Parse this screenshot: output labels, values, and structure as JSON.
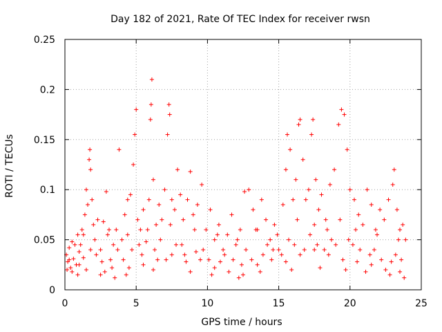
{
  "chart_data": {
    "type": "scatter",
    "title": "Day 182 of 2021, Rate Of TEC Index for receiver rwsn",
    "xlabel": "GPS time / hours",
    "ylabel": "ROTI / TECUs",
    "xlim": [
      0,
      25
    ],
    "ylim": [
      0,
      0.25
    ],
    "x_ticks": [
      {
        "value": 0,
        "label": "0"
      },
      {
        "value": 5,
        "label": "5"
      },
      {
        "value": 10,
        "label": "10"
      },
      {
        "value": 15,
        "label": "15"
      },
      {
        "value": 20,
        "label": "20"
      },
      {
        "value": 25,
        "label": "25"
      }
    ],
    "y_ticks": [
      {
        "value": 0,
        "label": "0"
      },
      {
        "value": 0.05,
        "label": "0.05"
      },
      {
        "value": 0.1,
        "label": "0.1"
      },
      {
        "value": 0.15,
        "label": "0.15"
      },
      {
        "value": 0.2,
        "label": "0.2"
      },
      {
        "value": 0.25,
        "label": "0.25"
      }
    ],
    "grid": true,
    "marker": "+",
    "color": "#ff0000",
    "series": [
      {
        "name": "ROTI",
        "points": [
          [
            0.1,
            0.035
          ],
          [
            0.2,
            0.028
          ],
          [
            0.3,
            0.042
          ],
          [
            0.4,
            0.022
          ],
          [
            0.5,
            0.048
          ],
          [
            0.6,
            0.031
          ],
          [
            0.8,
            0.025
          ],
          [
            0.9,
            0.055
          ],
          [
            1.0,
            0.038
          ],
          [
            1.1,
            0.045
          ],
          [
            1.2,
            0.06
          ],
          [
            1.3,
            0.032
          ],
          [
            1.4,
            0.075
          ],
          [
            1.5,
            0.1
          ],
          [
            1.6,
            0.085
          ],
          [
            1.7,
            0.13
          ],
          [
            1.75,
            0.14
          ],
          [
            1.8,
            0.12
          ],
          [
            1.9,
            0.09
          ],
          [
            2.0,
            0.065
          ],
          [
            2.1,
            0.05
          ],
          [
            2.3,
            0.07
          ],
          [
            2.5,
            0.04
          ],
          [
            2.7,
            0.068
          ],
          [
            2.9,
            0.098
          ],
          [
            3.0,
            0.055
          ],
          [
            3.2,
            0.03
          ],
          [
            3.4,
            0.045
          ],
          [
            3.6,
            0.06
          ],
          [
            3.8,
            0.14
          ],
          [
            4.0,
            0.05
          ],
          [
            4.2,
            0.075
          ],
          [
            4.4,
            0.09
          ],
          [
            4.6,
            0.095
          ],
          [
            4.8,
            0.125
          ],
          [
            4.9,
            0.155
          ],
          [
            5.0,
            0.18
          ],
          [
            5.1,
            0.07
          ],
          [
            5.3,
            0.06
          ],
          [
            5.5,
            0.08
          ],
          [
            5.7,
            0.048
          ],
          [
            5.9,
            0.09
          ],
          [
            6.0,
            0.17
          ],
          [
            6.05,
            0.185
          ],
          [
            6.1,
            0.21
          ],
          [
            6.2,
            0.11
          ],
          [
            6.4,
            0.065
          ],
          [
            6.6,
            0.085
          ],
          [
            6.8,
            0.07
          ],
          [
            7.0,
            0.1
          ],
          [
            7.2,
            0.155
          ],
          [
            7.3,
            0.185
          ],
          [
            7.35,
            0.175
          ],
          [
            7.5,
            0.09
          ],
          [
            7.7,
            0.08
          ],
          [
            7.9,
            0.12
          ],
          [
            8.1,
            0.095
          ],
          [
            8.3,
            0.07
          ],
          [
            8.6,
            0.09
          ],
          [
            8.8,
            0.118
          ],
          [
            9.0,
            0.075
          ],
          [
            9.3,
            0.085
          ],
          [
            9.6,
            0.105
          ],
          [
            9.9,
            0.06
          ],
          [
            10.2,
            0.08
          ],
          [
            10.5,
            0.05
          ],
          [
            10.8,
            0.065
          ],
          [
            11.1,
            0.04
          ],
          [
            11.4,
            0.055
          ],
          [
            11.7,
            0.075
          ],
          [
            12.0,
            0.045
          ],
          [
            12.3,
            0.06
          ],
          [
            12.6,
            0.098
          ],
          [
            12.9,
            0.1
          ],
          [
            13.2,
            0.08
          ],
          [
            13.5,
            0.06
          ],
          [
            13.8,
            0.09
          ],
          [
            14.1,
            0.07
          ],
          [
            14.4,
            0.05
          ],
          [
            14.7,
            0.065
          ],
          [
            15.0,
            0.04
          ],
          [
            15.3,
            0.085
          ],
          [
            15.5,
            0.12
          ],
          [
            15.6,
            0.155
          ],
          [
            15.8,
            0.14
          ],
          [
            16.0,
            0.09
          ],
          [
            16.2,
            0.11
          ],
          [
            16.4,
            0.165
          ],
          [
            16.5,
            0.17
          ],
          [
            16.7,
            0.13
          ],
          [
            16.9,
            0.09
          ],
          [
            17.1,
            0.1
          ],
          [
            17.3,
            0.155
          ],
          [
            17.4,
            0.17
          ],
          [
            17.6,
            0.11
          ],
          [
            17.8,
            0.08
          ],
          [
            18.0,
            0.095
          ],
          [
            18.3,
            0.07
          ],
          [
            18.6,
            0.105
          ],
          [
            18.9,
            0.12
          ],
          [
            19.2,
            0.165
          ],
          [
            19.4,
            0.18
          ],
          [
            19.6,
            0.175
          ],
          [
            19.8,
            0.14
          ],
          [
            20.0,
            0.1
          ],
          [
            20.3,
            0.09
          ],
          [
            20.6,
            0.075
          ],
          [
            20.9,
            0.065
          ],
          [
            21.2,
            0.1
          ],
          [
            21.5,
            0.085
          ],
          [
            21.8,
            0.06
          ],
          [
            22.1,
            0.08
          ],
          [
            22.4,
            0.07
          ],
          [
            22.7,
            0.09
          ],
          [
            23.0,
            0.105
          ],
          [
            23.1,
            0.12
          ],
          [
            23.3,
            0.08
          ],
          [
            23.5,
            0.06
          ],
          [
            23.7,
            0.065
          ],
          [
            23.9,
            0.05
          ],
          [
            0.5,
            0.018
          ],
          [
            1.5,
            0.02
          ],
          [
            2.5,
            0.015
          ],
          [
            3.5,
            0.012
          ],
          [
            4.5,
            0.022
          ],
          [
            5.5,
            0.025
          ],
          [
            6.5,
            0.03
          ],
          [
            7.5,
            0.035
          ],
          [
            8.5,
            0.028
          ],
          [
            9.5,
            0.03
          ],
          [
            10.5,
            0.022
          ],
          [
            11.5,
            0.018
          ],
          [
            12.5,
            0.015
          ],
          [
            13.5,
            0.025
          ],
          [
            14.5,
            0.03
          ],
          [
            15.5,
            0.028
          ],
          [
            16.5,
            0.035
          ],
          [
            17.5,
            0.04
          ],
          [
            18.5,
            0.035
          ],
          [
            19.5,
            0.03
          ],
          [
            20.5,
            0.028
          ],
          [
            21.5,
            0.025
          ],
          [
            22.5,
            0.02
          ],
          [
            23.5,
            0.018
          ],
          [
            0.7,
            0.045
          ],
          [
            2.2,
            0.035
          ],
          [
            3.7,
            0.04
          ],
          [
            5.2,
            0.045
          ],
          [
            6.7,
            0.05
          ],
          [
            8.2,
            0.045
          ],
          [
            9.7,
            0.04
          ],
          [
            11.2,
            0.035
          ],
          [
            12.7,
            0.04
          ],
          [
            14.2,
            0.045
          ],
          [
            15.7,
            0.05
          ],
          [
            17.2,
            0.055
          ],
          [
            18.7,
            0.05
          ],
          [
            20.2,
            0.045
          ],
          [
            21.7,
            0.04
          ],
          [
            23.2,
            0.035
          ],
          [
            0.3,
            0.03
          ],
          [
            1.0,
            0.025
          ],
          [
            1.8,
            0.04
          ],
          [
            2.6,
            0.028
          ],
          [
            3.3,
            0.022
          ],
          [
            4.1,
            0.03
          ],
          [
            4.7,
            0.04
          ],
          [
            5.4,
            0.035
          ],
          [
            6.3,
            0.04
          ],
          [
            7.1,
            0.03
          ],
          [
            7.8,
            0.045
          ],
          [
            8.4,
            0.035
          ],
          [
            9.2,
            0.038
          ],
          [
            10.1,
            0.03
          ],
          [
            10.9,
            0.028
          ],
          [
            11.8,
            0.03
          ],
          [
            12.4,
            0.025
          ],
          [
            13.1,
            0.03
          ],
          [
            13.9,
            0.035
          ],
          [
            14.6,
            0.04
          ],
          [
            15.2,
            0.035
          ],
          [
            16.1,
            0.045
          ],
          [
            16.8,
            0.04
          ],
          [
            17.7,
            0.045
          ],
          [
            18.2,
            0.04
          ],
          [
            19.0,
            0.045
          ],
          [
            19.9,
            0.05
          ],
          [
            20.7,
            0.04
          ],
          [
            21.4,
            0.035
          ],
          [
            22.2,
            0.03
          ],
          [
            22.9,
            0.028
          ],
          [
            23.6,
            0.03
          ],
          [
            0.15,
            0.02
          ],
          [
            0.9,
            0.015
          ],
          [
            2.8,
            0.018
          ],
          [
            4.3,
            0.015
          ],
          [
            6.2,
            0.02
          ],
          [
            8.8,
            0.018
          ],
          [
            10.3,
            0.015
          ],
          [
            12.2,
            0.012
          ],
          [
            13.7,
            0.018
          ],
          [
            15.9,
            0.02
          ],
          [
            17.9,
            0.022
          ],
          [
            19.7,
            0.02
          ],
          [
            21.1,
            0.018
          ],
          [
            22.8,
            0.015
          ],
          [
            23.8,
            0.012
          ],
          [
            1.3,
            0.055
          ],
          [
            3.1,
            0.06
          ],
          [
            4.4,
            0.055
          ],
          [
            5.8,
            0.06
          ],
          [
            7.4,
            0.065
          ],
          [
            9.1,
            0.06
          ],
          [
            10.7,
            0.055
          ],
          [
            12.1,
            0.05
          ],
          [
            13.4,
            0.06
          ],
          [
            14.9,
            0.055
          ],
          [
            16.3,
            0.07
          ],
          [
            17.5,
            0.065
          ],
          [
            18.4,
            0.06
          ],
          [
            19.3,
            0.07
          ],
          [
            20.4,
            0.06
          ],
          [
            21.9,
            0.055
          ],
          [
            23.4,
            0.05
          ]
        ]
      }
    ]
  }
}
